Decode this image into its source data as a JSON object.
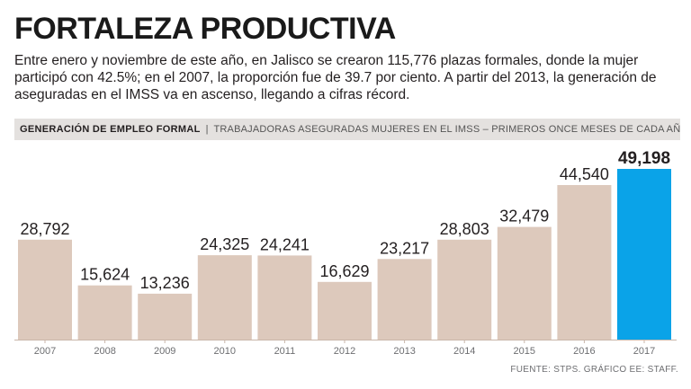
{
  "headline": "FORTALEZA PRODUCTIVA",
  "intro": "Entre enero y noviembre de este año, en Jalisco se crearon 115,776 plazas formales, donde la mujer participó con 42.5%; en el 2007, la proporción fue de 39.7 por ciento. A partir del 2013, la generación de aseguradas en el IMSS va en ascenso, llegando a cifras récord.",
  "strip": {
    "title": "GENERACIÓN DE EMPLEO FORMAL",
    "separator": "|",
    "subtitle": "TRABAJADORAS ASEGURADAS MUJERES EN EL IMSS – PRIMEROS ONCE MESES DE CADA AÑO"
  },
  "source": "FUENTE: STPS. GRÁFICO EE: STAFF.",
  "colors": {
    "bar": "#ddc9bc",
    "highlight": "#0aa3e8",
    "axis": "#c9b6a9"
  },
  "chart_data": {
    "type": "bar",
    "title": "GENERACIÓN DE EMPLEO FORMAL",
    "subtitle": "TRABAJADORAS ASEGURADAS MUJERES EN EL IMSS – PRIMEROS ONCE MESES DE CADA AÑO",
    "categories": [
      "2007",
      "2008",
      "2009",
      "2010",
      "2011",
      "2012",
      "2013",
      "2014",
      "2015",
      "2016",
      "2017"
    ],
    "values": [
      28792,
      15624,
      13236,
      24325,
      24241,
      16629,
      23217,
      28803,
      32479,
      44540,
      49198
    ],
    "labels": [
      "28,792",
      "15,624",
      "13,236",
      "24,325",
      "24,241",
      "16,629",
      "23,217",
      "28,803",
      "32,479",
      "44,540",
      "49,198"
    ],
    "highlight_index": 10,
    "ylim": [
      0,
      49198
    ],
    "xlabel": "",
    "ylabel": "",
    "grid": false
  }
}
